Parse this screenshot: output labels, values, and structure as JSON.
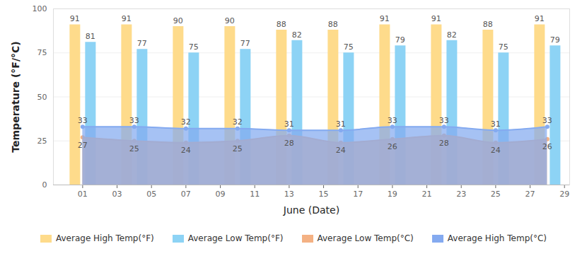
{
  "chart_data": {
    "type": "bar",
    "x_label": "June (Date)",
    "y_label": "Temperature (°F/°C)",
    "x": [
      1,
      4,
      7,
      10,
      13,
      16,
      19,
      22,
      25,
      28
    ],
    "xlim": [
      -0.7,
      29.3
    ],
    "xticks": [
      {
        "value": 1,
        "label": "01"
      },
      {
        "value": 3,
        "label": "03"
      },
      {
        "value": 5,
        "label": "05"
      },
      {
        "value": 7,
        "label": "07"
      },
      {
        "value": 9,
        "label": "09"
      },
      {
        "value": 11,
        "label": "11"
      },
      {
        "value": 13,
        "label": "13"
      },
      {
        "value": 15,
        "label": "15"
      },
      {
        "value": 17,
        "label": "17"
      },
      {
        "value": 19,
        "label": "19"
      },
      {
        "value": 21,
        "label": "21"
      },
      {
        "value": 23,
        "label": "23"
      },
      {
        "value": 25,
        "label": "25"
      },
      {
        "value": 27,
        "label": "27"
      },
      {
        "value": 29,
        "label": "29"
      }
    ],
    "ylim": [
      0,
      100
    ],
    "yticks": [
      0,
      25,
      50,
      75,
      100
    ],
    "grid": true,
    "legend": "bottom",
    "data_labels": true,
    "series": [
      {
        "name": "Average High Temp(°F)",
        "type": "bar",
        "color": "#fedb8b",
        "values": [
          91,
          91,
          90,
          90,
          88,
          88,
          91,
          91,
          88,
          91
        ]
      },
      {
        "name": "Average Low Temp(°F)",
        "type": "bar",
        "color": "#8dd3f5",
        "values": [
          81,
          77,
          75,
          77,
          82,
          75,
          79,
          82,
          75,
          79
        ]
      },
      {
        "name": "Average Low Temp(°C)",
        "type": "area",
        "color": "#f4b183",
        "marker": "circle",
        "values": [
          27,
          25,
          24,
          25,
          28,
          24,
          26,
          28,
          24,
          26
        ]
      },
      {
        "name": "Average High Temp(°C)",
        "type": "area",
        "color": "#84aaf0",
        "marker": "circle",
        "values": [
          33,
          33,
          32,
          32,
          31,
          31,
          33,
          33,
          31,
          33
        ]
      }
    ]
  }
}
